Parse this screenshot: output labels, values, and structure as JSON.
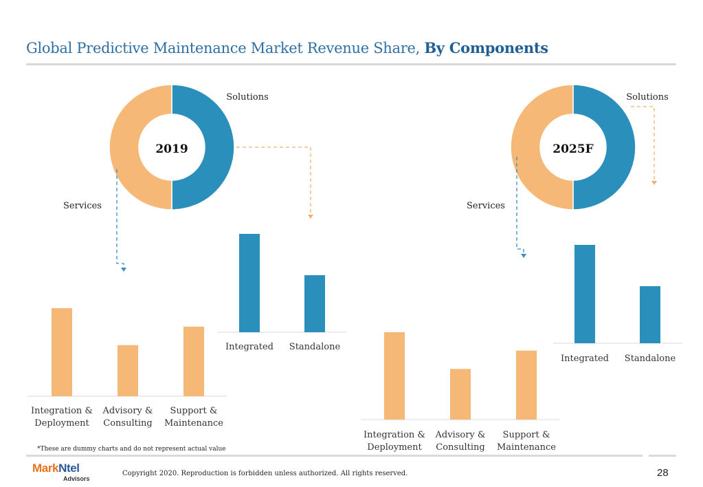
{
  "header": {
    "title_main": "Global Predictive Maintenance Market Revenue Share, ",
    "title_bold": "By Components"
  },
  "footer": {
    "note": "*These are dummy charts and do not represent actual value",
    "copyright": "Copyright 2020. Reproduction is forbidden unless authorized. All rights reserved.",
    "page_number": "28",
    "logo_mark": "Mark",
    "logo_ntel": "Ntel",
    "logo_sub": "Advisors"
  },
  "colors": {
    "solutions": "#2a8fba",
    "services": "#f5b877",
    "connector_blue": "#3a8fc0",
    "connector_orange": "#f0b070",
    "axis": "#d9d9d9"
  },
  "chart_data": [
    {
      "type": "pie",
      "center_label": "2019",
      "slices": [
        {
          "label": "Solutions",
          "value": 50
        },
        {
          "label": "Services",
          "value": 50
        }
      ]
    },
    {
      "type": "bar",
      "categories": [
        "Integrated",
        "Standalone"
      ],
      "values": [
        100,
        58
      ],
      "ylim": [
        0,
        100
      ],
      "color": "#2a8fba"
    },
    {
      "type": "bar",
      "categories": [
        "Integration & Deployment",
        "Advisory & Consulting",
        "Support & Maintenance"
      ],
      "values": [
        100,
        58,
        79
      ],
      "ylim": [
        0,
        100
      ],
      "color": "#f5b877"
    },
    {
      "type": "pie",
      "center_label": "2025F",
      "slices": [
        {
          "label": "Solutions",
          "value": 50
        },
        {
          "label": "Services",
          "value": 50
        }
      ]
    },
    {
      "type": "bar",
      "categories": [
        "Integrated",
        "Standalone"
      ],
      "values": [
        100,
        58
      ],
      "ylim": [
        0,
        100
      ],
      "color": "#2a8fba"
    },
    {
      "type": "bar",
      "categories": [
        "Integration & Deployment",
        "Advisory & Consulting",
        "Support & Maintenance"
      ],
      "values": [
        100,
        58,
        79
      ],
      "ylim": [
        0,
        100
      ],
      "color": "#f5b877"
    }
  ]
}
